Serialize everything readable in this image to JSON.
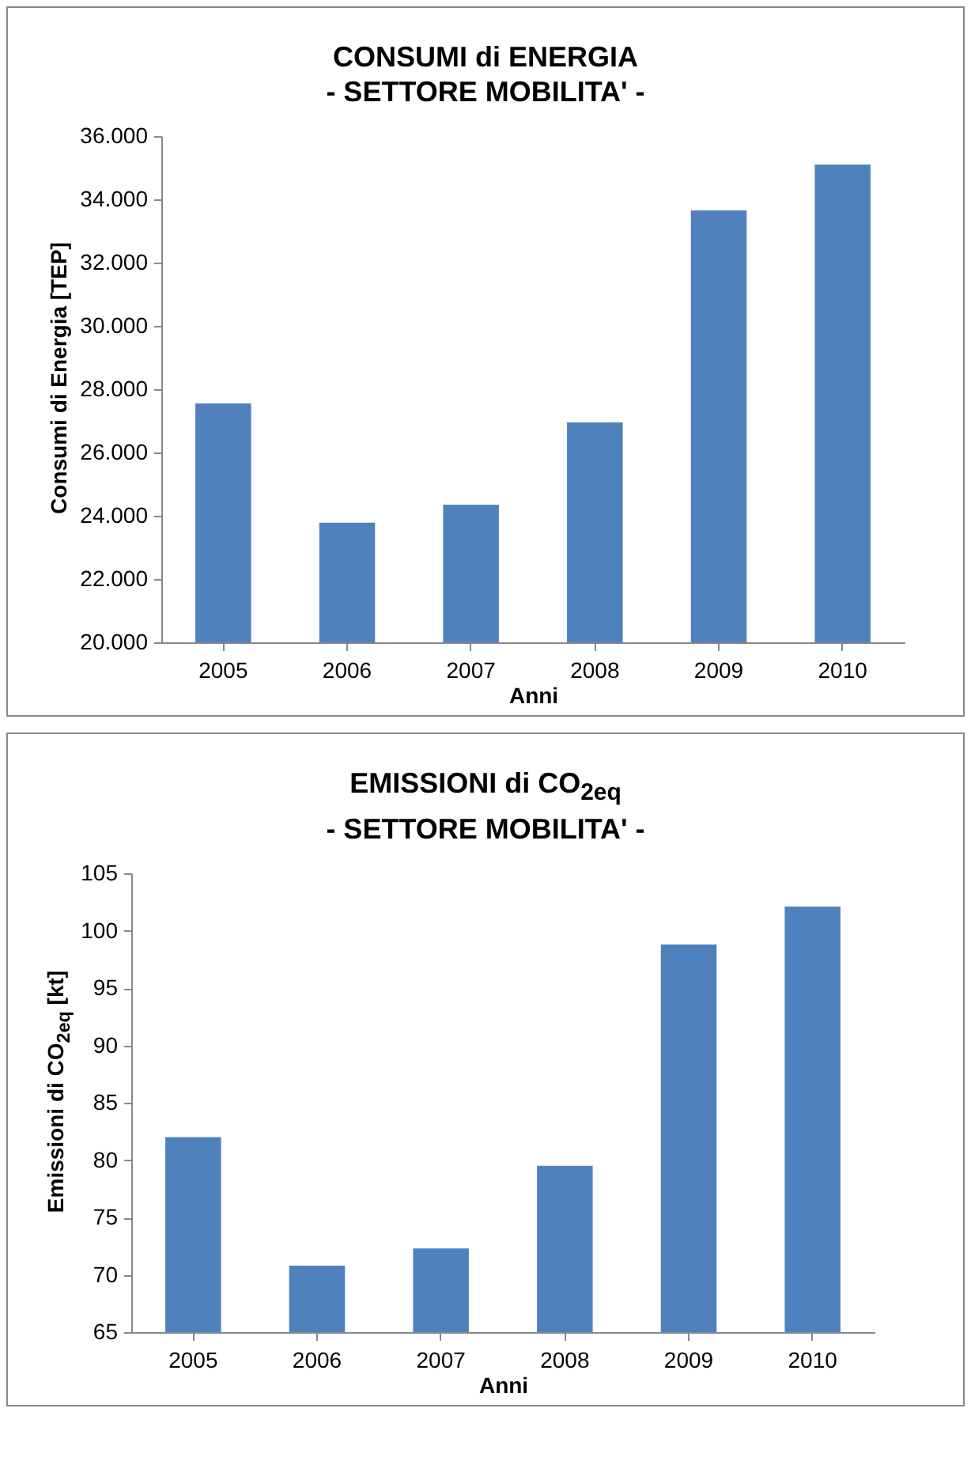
{
  "chart_data": [
    {
      "type": "bar",
      "title": "CONSUMI di ENERGIA",
      "subtitle": "- SETTORE MOBILITA' -",
      "xlabel": "Anni",
      "ylabel": "Consumi di Energia [TEP]",
      "categories": [
        "2005",
        "2006",
        "2007",
        "2008",
        "2009",
        "2010"
      ],
      "values": [
        27550,
        23780,
        24350,
        26950,
        33650,
        35100
      ],
      "color": "#4f81bd",
      "ylim": [
        20000,
        36000
      ],
      "yticks": [
        {
          "value": 20000,
          "label": "20.000"
        },
        {
          "value": 22000,
          "label": "22.000"
        },
        {
          "value": 24000,
          "label": "24.000"
        },
        {
          "value": 26000,
          "label": "26.000"
        },
        {
          "value": 28000,
          "label": "28.000"
        },
        {
          "value": 30000,
          "label": "30.000"
        },
        {
          "value": 32000,
          "label": "32.000"
        },
        {
          "value": 34000,
          "label": "34.000"
        },
        {
          "value": 36000,
          "label": "36.000"
        }
      ]
    },
    {
      "type": "bar",
      "title": "EMISSIONI di CO$_{2eq}$",
      "subtitle": "- SETTORE MOBILITA' -",
      "xlabel": "Anni",
      "ylabel": "Emissioni di CO$_{2eq}$ [kt]",
      "categories": [
        "2005",
        "2006",
        "2007",
        "2008",
        "2009",
        "2010"
      ],
      "values": [
        82.0,
        70.8,
        72.3,
        79.5,
        98.8,
        102.1
      ],
      "color": "#4f81bd",
      "ylim": [
        65,
        105
      ],
      "yticks": [
        65,
        70,
        75,
        80,
        85,
        90,
        95,
        100,
        105
      ]
    }
  ]
}
